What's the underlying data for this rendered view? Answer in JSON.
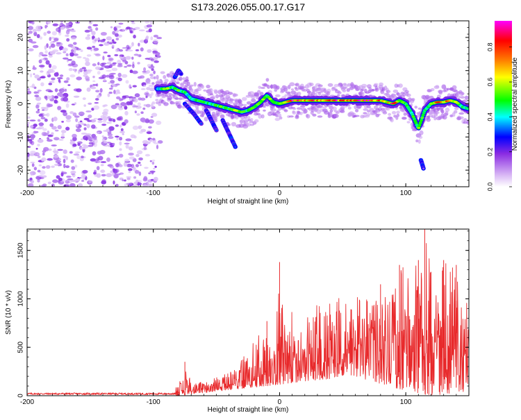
{
  "title": "S173.2026.055.00.17.G17",
  "chart_data": [
    {
      "type": "heatmap",
      "xlabel": "Height of straight line (km)",
      "ylabel": "Frequency (Hz)",
      "xlim": [
        -200,
        150
      ],
      "ylim": [
        -25,
        25
      ],
      "xticks": [
        -200,
        -100,
        0,
        100
      ],
      "yticks": [
        -20,
        -10,
        0,
        10,
        20
      ],
      "colorbar": {
        "label": "Normalized spectral amplitude",
        "range": [
          0,
          0.95
        ],
        "ticks": [
          0.0,
          0.2,
          0.4,
          0.6,
          0.8
        ],
        "tick_labels": [
          "0.0",
          "0.2",
          "0.4",
          "0.6",
          "0.8"
        ],
        "colors": [
          "#ffffff",
          "#8a2be2",
          "#0000ff",
          "#00ffff",
          "#00ff00",
          "#ffff00",
          "#ff8000",
          "#ff0000",
          "#ff00ff"
        ]
      },
      "noise_region": {
        "x": [
          -200,
          -97
        ],
        "y": [
          -25,
          25
        ],
        "amplitude": 0.1
      },
      "ridge": [
        {
          "x": -97,
          "f": 4.5,
          "a": 0.35
        },
        {
          "x": -90,
          "f": 4.5,
          "a": 0.55
        },
        {
          "x": -85,
          "f": 5.0,
          "a": 0.45
        },
        {
          "x": -80,
          "f": 4.0,
          "a": 0.5
        },
        {
          "x": -75,
          "f": 3.5,
          "a": 0.45
        },
        {
          "x": -70,
          "f": 1.5,
          "a": 0.4
        },
        {
          "x": -65,
          "f": 1.0,
          "a": 0.45
        },
        {
          "x": -60,
          "f": 0.5,
          "a": 0.5
        },
        {
          "x": -55,
          "f": 0.0,
          "a": 0.45
        },
        {
          "x": -50,
          "f": -0.5,
          "a": 0.5
        },
        {
          "x": -45,
          "f": -1.0,
          "a": 0.5
        },
        {
          "x": -40,
          "f": -1.5,
          "a": 0.5
        },
        {
          "x": -35,
          "f": -2.0,
          "a": 0.55
        },
        {
          "x": -30,
          "f": -2.5,
          "a": 0.5
        },
        {
          "x": -25,
          "f": -2.0,
          "a": 0.45
        },
        {
          "x": -20,
          "f": -1.0,
          "a": 0.5
        },
        {
          "x": -15,
          "f": 0.5,
          "a": 0.55
        },
        {
          "x": -10,
          "f": 2.5,
          "a": 0.55
        },
        {
          "x": -5,
          "f": 0.5,
          "a": 0.5
        },
        {
          "x": 0,
          "f": 0.0,
          "a": 0.55
        },
        {
          "x": 5,
          "f": 0.5,
          "a": 0.65
        },
        {
          "x": 10,
          "f": 1.0,
          "a": 0.9
        },
        {
          "x": 15,
          "f": 1.0,
          "a": 0.85
        },
        {
          "x": 20,
          "f": 1.0,
          "a": 0.7
        },
        {
          "x": 25,
          "f": 1.0,
          "a": 0.75
        },
        {
          "x": 30,
          "f": 1.0,
          "a": 0.8
        },
        {
          "x": 35,
          "f": 1.0,
          "a": 0.7
        },
        {
          "x": 40,
          "f": 1.0,
          "a": 0.75
        },
        {
          "x": 45,
          "f": 1.0,
          "a": 0.85
        },
        {
          "x": 50,
          "f": 1.0,
          "a": 0.8
        },
        {
          "x": 55,
          "f": 1.0,
          "a": 0.85
        },
        {
          "x": 60,
          "f": 1.0,
          "a": 0.8
        },
        {
          "x": 65,
          "f": 1.0,
          "a": 0.85
        },
        {
          "x": 70,
          "f": 1.0,
          "a": 0.9
        },
        {
          "x": 75,
          "f": 1.0,
          "a": 0.8
        },
        {
          "x": 80,
          "f": 1.0,
          "a": 0.75
        },
        {
          "x": 85,
          "f": 0.5,
          "a": 0.7
        },
        {
          "x": 90,
          "f": 0.0,
          "a": 0.8
        },
        {
          "x": 95,
          "f": 1.0,
          "a": 0.65
        },
        {
          "x": 100,
          "f": 0.0,
          "a": 0.5
        },
        {
          "x": 105,
          "f": -3.0,
          "a": 0.5
        },
        {
          "x": 110,
          "f": -7.5,
          "a": 0.55
        },
        {
          "x": 115,
          "f": -2.0,
          "a": 0.45
        },
        {
          "x": 120,
          "f": 0.0,
          "a": 0.55
        },
        {
          "x": 125,
          "f": 0.5,
          "a": 0.75
        },
        {
          "x": 130,
          "f": 0.5,
          "a": 0.8
        },
        {
          "x": 135,
          "f": 1.0,
          "a": 0.65
        },
        {
          "x": 140,
          "f": 0.5,
          "a": 0.55
        },
        {
          "x": 145,
          "f": -1.0,
          "a": 0.5
        },
        {
          "x": 150,
          "f": -1.5,
          "a": 0.45
        }
      ],
      "branches": [
        {
          "x": [
            -75,
            -68,
            -62
          ],
          "f": [
            0.0,
            -3.0,
            -6.0
          ],
          "a": 0.4
        },
        {
          "x": [
            -58,
            -54,
            -50
          ],
          "f": [
            -2.0,
            -5.0,
            -8.0
          ],
          "a": 0.4
        },
        {
          "x": [
            -45,
            -40,
            -35
          ],
          "f": [
            -5.0,
            -9.0,
            -13.0
          ],
          "a": 0.4
        },
        {
          "x": [
            -83,
            -80,
            -78
          ],
          "f": [
            8.0,
            10.0,
            9.0
          ],
          "a": 0.35
        },
        {
          "x": [
            112,
            114
          ],
          "f": [
            -17.0,
            -19.5
          ],
          "a": 0.2
        }
      ]
    },
    {
      "type": "line",
      "xlabel": "Height of straight line (km)",
      "ylabel": "SNR (10 * v/v)",
      "xlim": [
        -200,
        150
      ],
      "ylim": [
        0,
        1720
      ],
      "xticks": [
        -200,
        -100,
        0,
        100
      ],
      "yticks": [
        0,
        500,
        1000,
        1500
      ],
      "color": "#e8292b",
      "envelope": [
        {
          "x": -200,
          "y": 30
        },
        {
          "x": -180,
          "y": 28
        },
        {
          "x": -160,
          "y": 30
        },
        {
          "x": -140,
          "y": 30
        },
        {
          "x": -120,
          "y": 28
        },
        {
          "x": -100,
          "y": 35
        },
        {
          "x": -90,
          "y": 50
        },
        {
          "x": -80,
          "y": 110
        },
        {
          "x": -75,
          "y": 350
        },
        {
          "x": -70,
          "y": 150
        },
        {
          "x": -60,
          "y": 140
        },
        {
          "x": -50,
          "y": 200
        },
        {
          "x": -40,
          "y": 260
        },
        {
          "x": -30,
          "y": 420
        },
        {
          "x": -20,
          "y": 620
        },
        {
          "x": -10,
          "y": 770
        },
        {
          "x": -5,
          "y": 660
        },
        {
          "x": 0,
          "y": 1380
        },
        {
          "x": 5,
          "y": 780
        },
        {
          "x": 10,
          "y": 900
        },
        {
          "x": 20,
          "y": 930
        },
        {
          "x": 30,
          "y": 1020
        },
        {
          "x": 40,
          "y": 1000
        },
        {
          "x": 50,
          "y": 1020
        },
        {
          "x": 60,
          "y": 1050
        },
        {
          "x": 70,
          "y": 1040
        },
        {
          "x": 80,
          "y": 1150
        },
        {
          "x": 90,
          "y": 1100
        },
        {
          "x": 95,
          "y": 1350
        },
        {
          "x": 100,
          "y": 1300
        },
        {
          "x": 110,
          "y": 1400
        },
        {
          "x": 115,
          "y": 1720
        },
        {
          "x": 120,
          "y": 1350
        },
        {
          "x": 130,
          "y": 1400
        },
        {
          "x": 140,
          "y": 1350
        },
        {
          "x": 150,
          "y": 1100
        }
      ],
      "floor": [
        {
          "x": -200,
          "y": 0
        },
        {
          "x": -80,
          "y": 0
        },
        {
          "x": -40,
          "y": 60
        },
        {
          "x": -10,
          "y": 100
        },
        {
          "x": 20,
          "y": 150
        },
        {
          "x": 60,
          "y": 200
        },
        {
          "x": 100,
          "y": 50
        },
        {
          "x": 120,
          "y": 0
        },
        {
          "x": 150,
          "y": 50
        }
      ]
    }
  ]
}
